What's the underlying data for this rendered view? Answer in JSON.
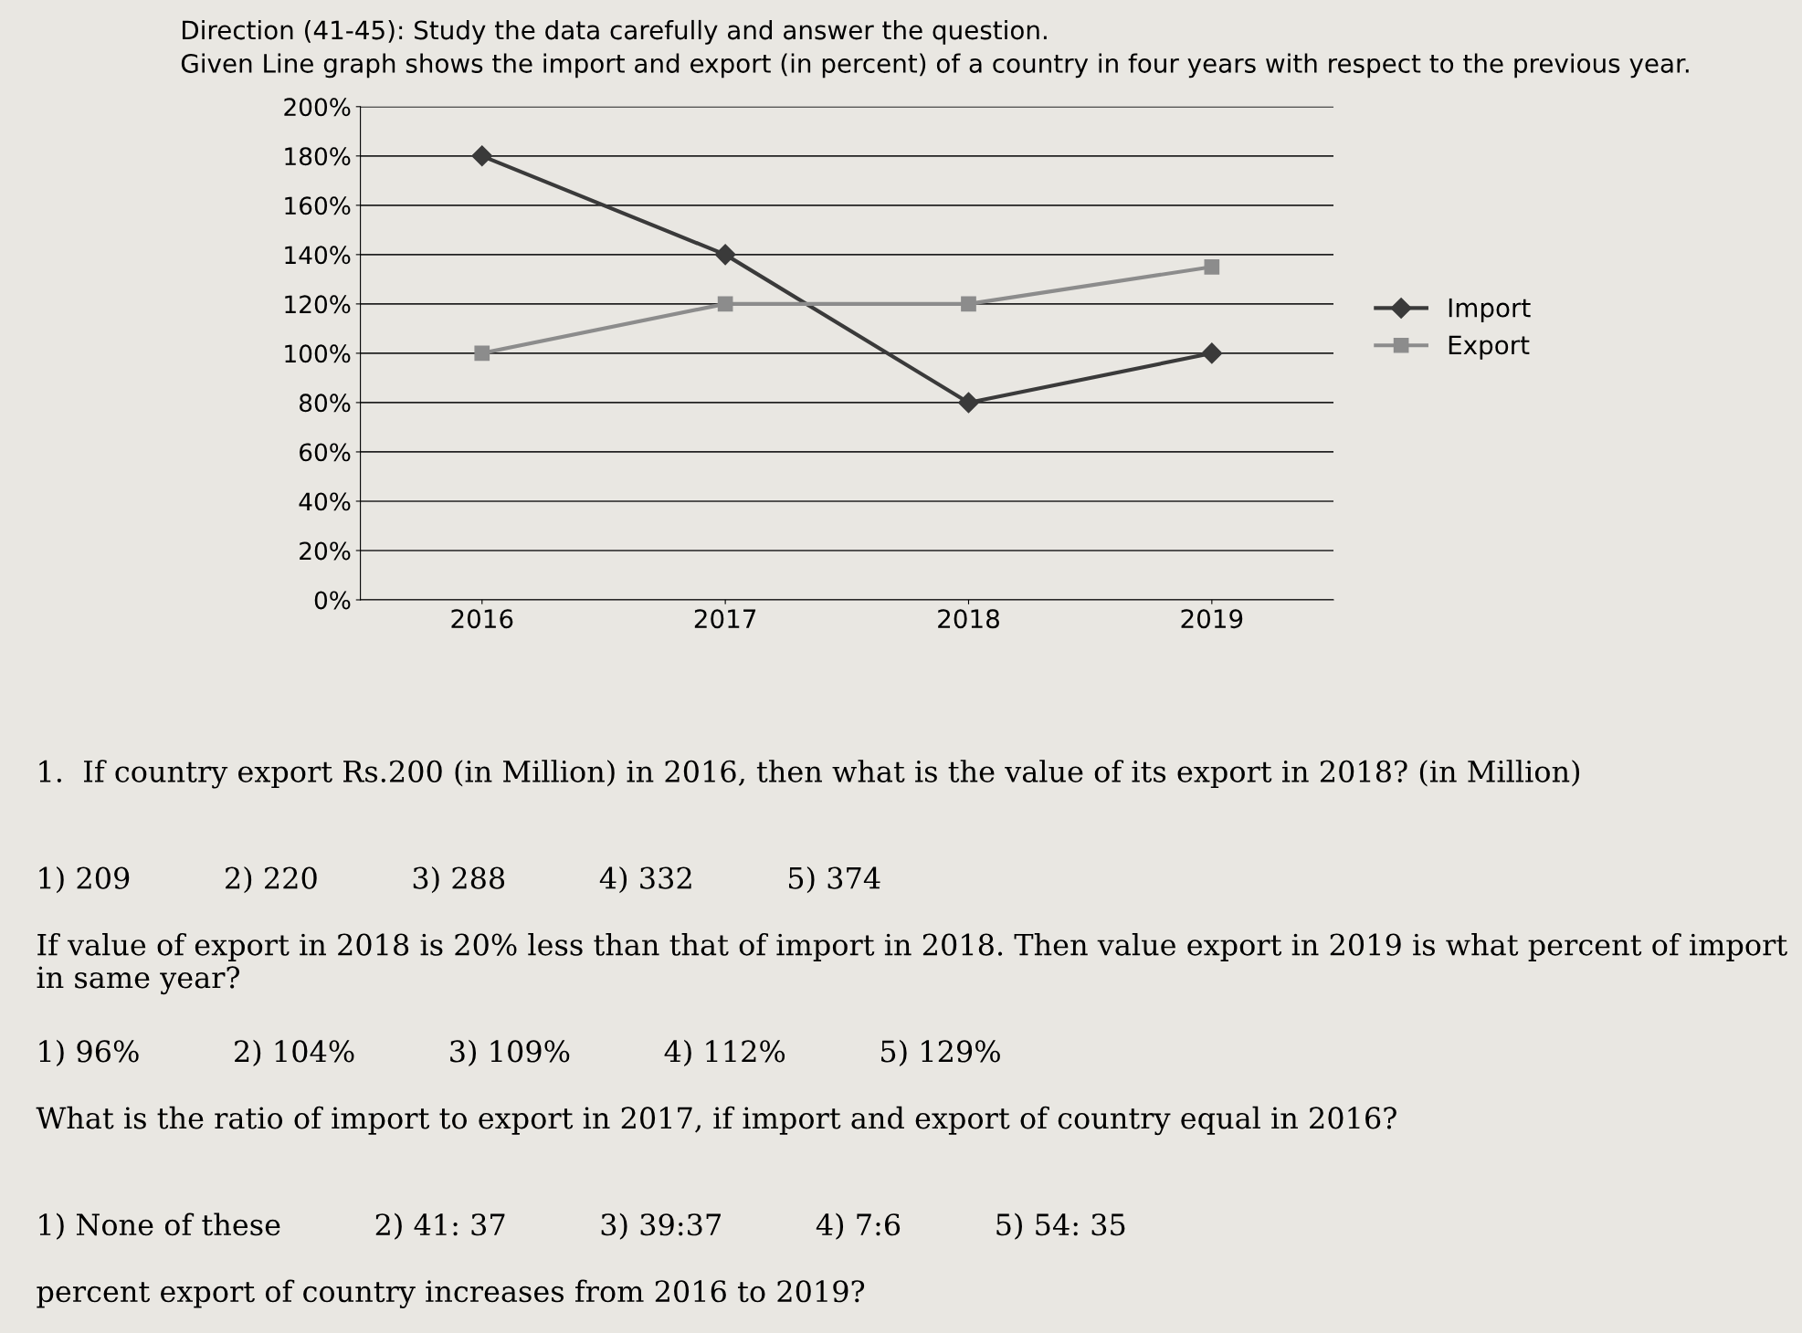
{
  "chart_data": {
    "type": "line",
    "title": "Direction (41-45): Study the data carefully and answer the question.",
    "subtitle": "Given Line graph shows the import and export (in percent) of a country in four years with respect to the previous year.",
    "categories": [
      "2016",
      "2017",
      "2018",
      "2019"
    ],
    "series": [
      {
        "name": "Import",
        "color": "#3a3a3a",
        "values": [
          180,
          140,
          80,
          100
        ],
        "marker": "diamond"
      },
      {
        "name": "Export",
        "color": "#8c8c8c",
        "values": [
          100,
          120,
          120,
          135
        ],
        "marker": "square"
      }
    ],
    "ylim": [
      0,
      200
    ],
    "yticks": [
      {
        "value": 0,
        "label": "0%"
      },
      {
        "value": 20,
        "label": "20%"
      },
      {
        "value": 40,
        "label": "40%"
      },
      {
        "value": 60,
        "label": "60%"
      },
      {
        "value": 80,
        "label": "80%"
      },
      {
        "value": 100,
        "label": "100%"
      },
      {
        "value": 120,
        "label": "120%"
      },
      {
        "value": 140,
        "label": "140%"
      },
      {
        "value": 160,
        "label": "160%"
      },
      {
        "value": 180,
        "label": "180%"
      },
      {
        "value": 200,
        "label": "200%"
      }
    ],
    "grid": "y",
    "legend": "right",
    "line_style": "solid",
    "annotations": [
      "1.  If country export Rs.200 (in Million) in 2016, then what is the value of its export in 2018? (in Million)",
      "1) 209          2) 220          3) 288          4) 332          5) 374",
      "If value of export in 2018 is 20% less than that of import in 2018. Then value export in 2019 is what percent of import in same year?",
      "1) 96%          2) 104%          3) 109%          4) 112%          5) 129%",
      "What is the ratio of import to export in 2017, if import and export of country equal in 2016?",
      "1) None of these          2) 41: 37          3) 39:37          4) 7:6          5) 54: 35",
      "percent export of country increases from 2016 to 2019?"
    ]
  }
}
